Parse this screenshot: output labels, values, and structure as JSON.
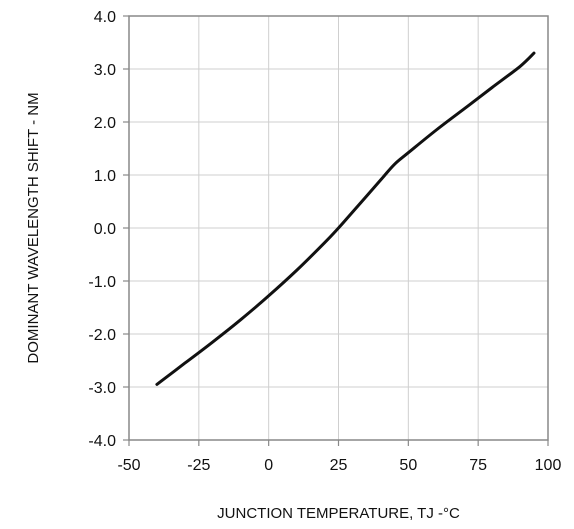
{
  "chart_data": {
    "type": "line",
    "title": "",
    "xlabel": "JUNCTION TEMPERATURE, TJ -°C",
    "ylabel": "DOMINANT WAVELENGTH SHIFT - NM",
    "xlim": [
      -50,
      100
    ],
    "ylim": [
      -4.0,
      4.0
    ],
    "x_ticks": [
      -50,
      -25,
      0,
      25,
      50,
      75,
      100
    ],
    "x_tick_labels": [
      "-50",
      "-25",
      "0",
      "25",
      "50",
      "75",
      "100"
    ],
    "y_ticks": [
      4.0,
      3.0,
      2.0,
      1.0,
      0.0,
      -1.0,
      -2.0,
      -3.0,
      -4.0
    ],
    "y_tick_labels": [
      "4.0",
      "3.0",
      "2.0",
      "1.0",
      "0.0",
      "-1.0",
      "-2.0",
      "-3.0",
      "-4.0"
    ],
    "grid": true,
    "series": [
      {
        "color": "#111111",
        "x": [
          -40,
          -30,
          -20,
          -10,
          0,
          10,
          20,
          25,
          30,
          40,
          45,
          50,
          60,
          70,
          80,
          90,
          95
        ],
        "y": [
          -2.95,
          -2.55,
          -2.15,
          -1.73,
          -1.28,
          -0.8,
          -0.28,
          0.0,
          0.3,
          0.9,
          1.2,
          1.42,
          1.85,
          2.25,
          2.65,
          3.05,
          3.3
        ]
      }
    ]
  }
}
